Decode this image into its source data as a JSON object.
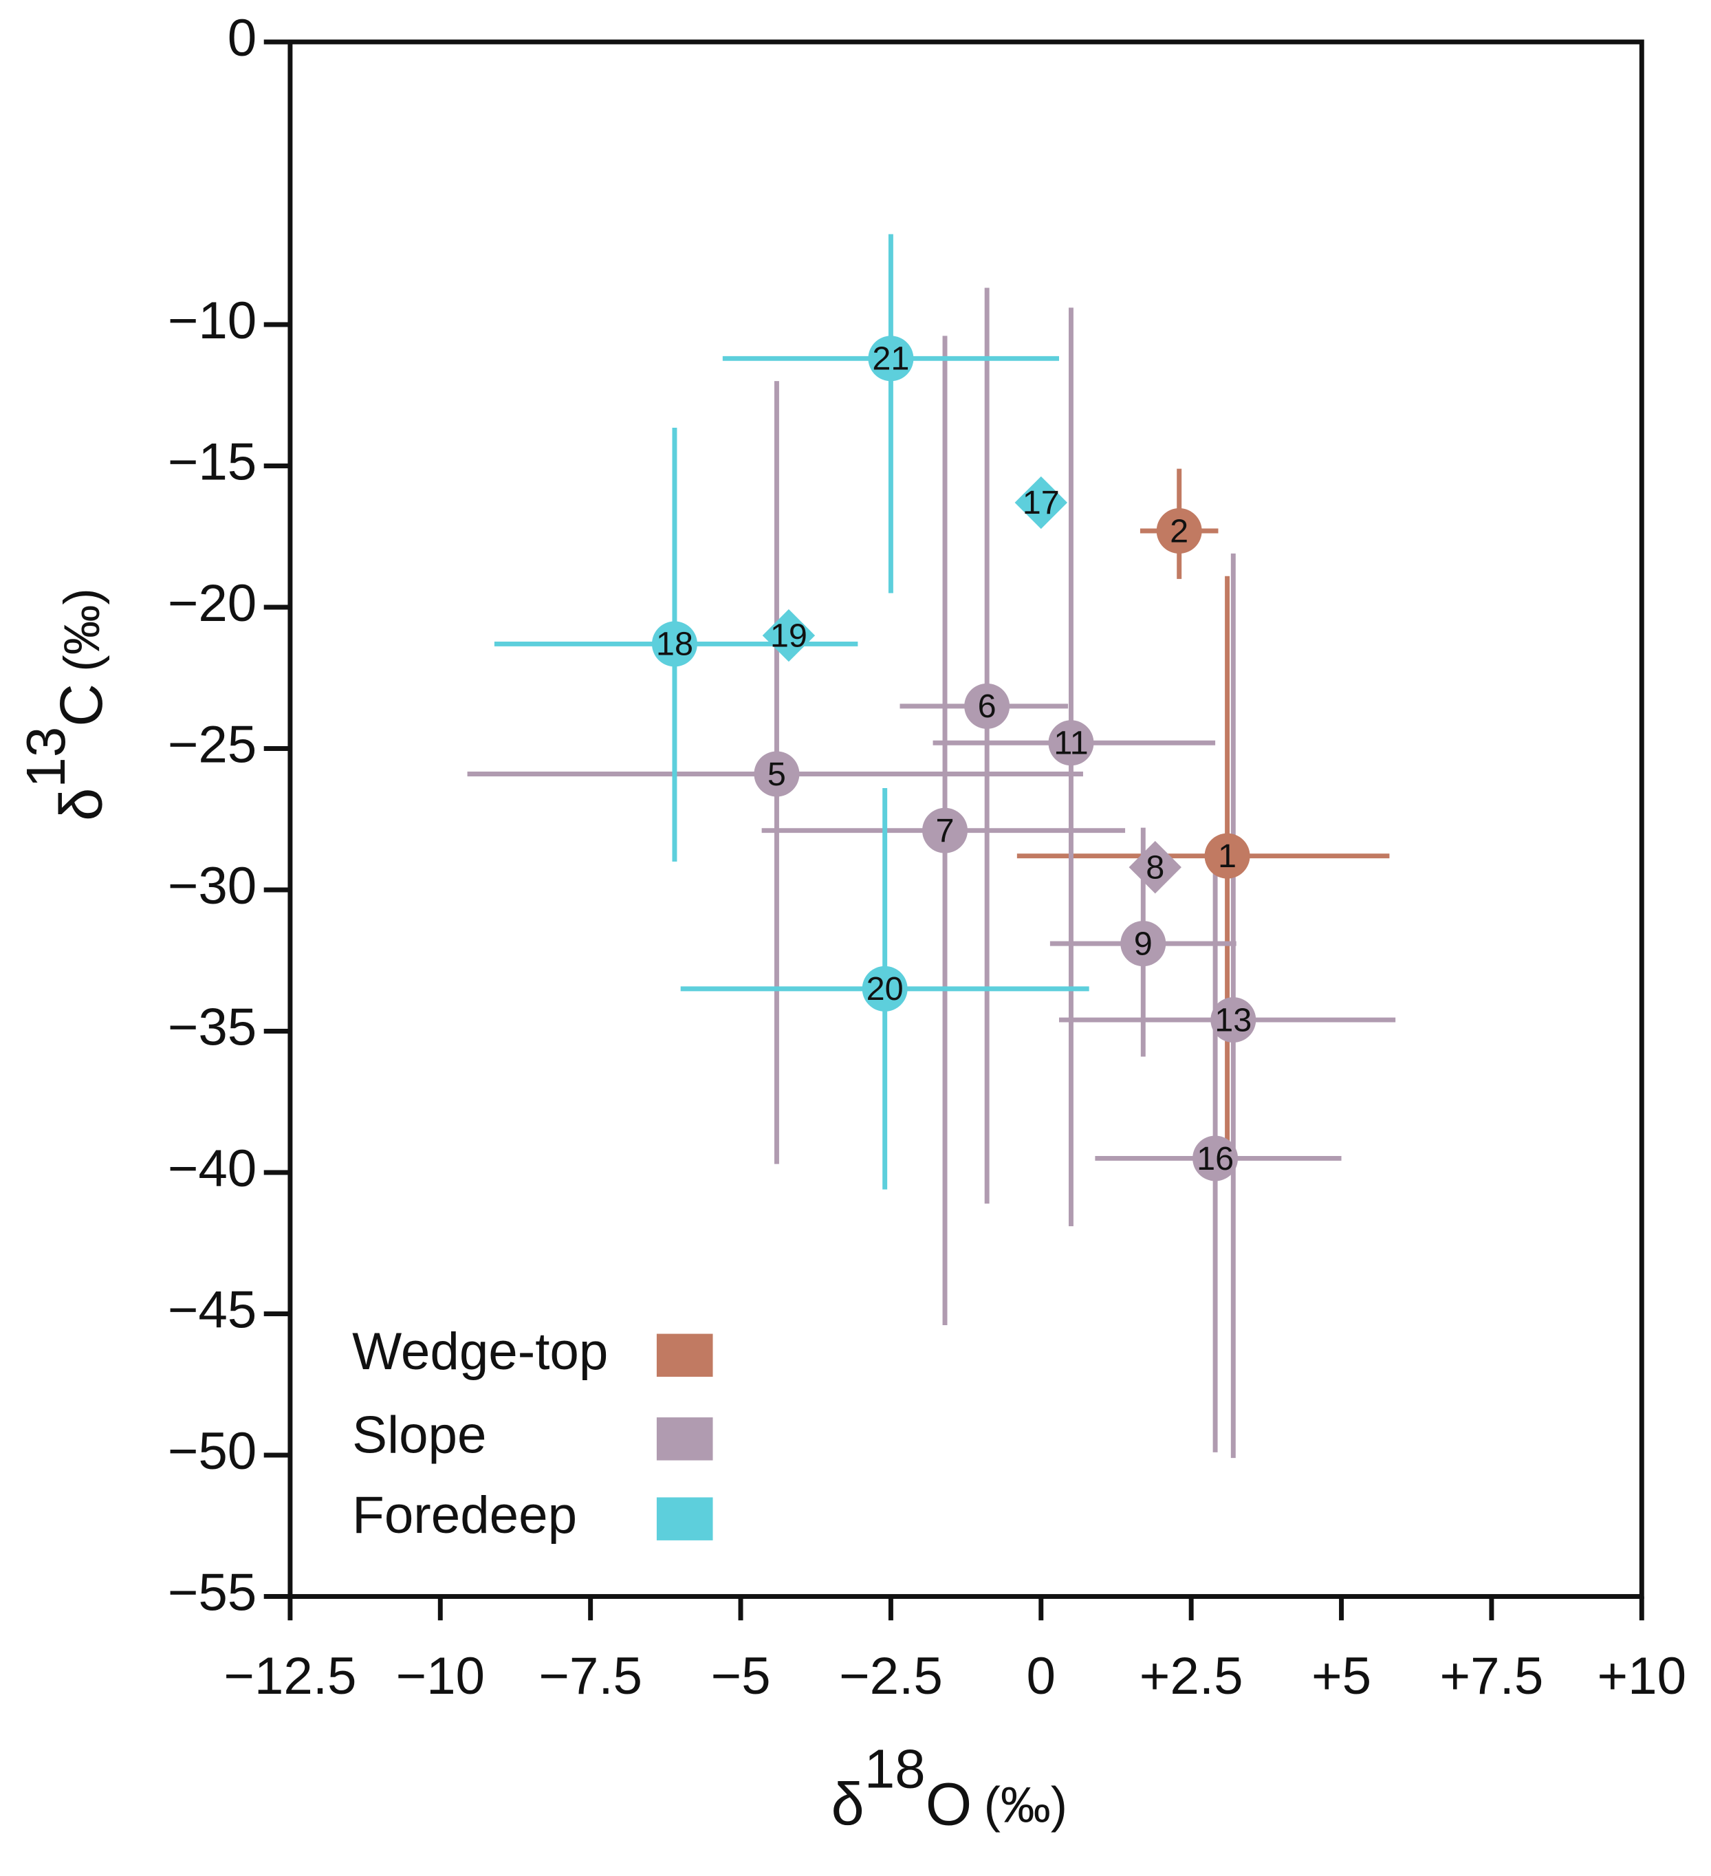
{
  "chart_data": {
    "type": "scatter",
    "x_label": {
      "symbol": "δ",
      "sup": "18",
      "element": "O",
      "unit": "(‰)"
    },
    "y_label": {
      "symbol": "δ",
      "sup": "13",
      "element": "C",
      "unit": "(‰)"
    },
    "xlim": [
      -12.5,
      10
    ],
    "ylim": [
      -55,
      0
    ],
    "xticks": [
      {
        "value": -12.5,
        "label": "−12.5"
      },
      {
        "value": -10,
        "label": "−10"
      },
      {
        "value": -7.5,
        "label": "−7.5"
      },
      {
        "value": -5,
        "label": "−5"
      },
      {
        "value": -2.5,
        "label": "−2.5"
      },
      0,
      {
        "value": 2.5,
        "label": "+2.5"
      },
      {
        "value": 5,
        "label": "+5"
      },
      {
        "value": 7.5,
        "label": "+7.5"
      },
      {
        "value": 10,
        "label": "+10"
      }
    ],
    "yticks": [
      0,
      {
        "value": -10,
        "label": "−10"
      },
      {
        "value": -15,
        "label": "−15"
      },
      {
        "value": -20,
        "label": "−20"
      },
      {
        "value": -25,
        "label": "−25"
      },
      {
        "value": -30,
        "label": "−30"
      },
      {
        "value": -35,
        "label": "−35"
      },
      {
        "value": -40,
        "label": "−40"
      },
      {
        "value": -45,
        "label": "−45"
      },
      {
        "value": -50,
        "label": "−50"
      },
      {
        "value": -55,
        "label": "−55"
      }
    ],
    "legend": "lower left",
    "series": [
      {
        "name": "Wedge-top",
        "color": "#c17a62",
        "labels": [
          "1",
          "2"
        ],
        "markers": [
          "circle",
          "circle"
        ],
        "x": [
          3.1,
          2.3
        ],
        "y": [
          -28.8,
          -17.3
        ],
        "xerr": [
          [
            3.5,
            2.7
          ],
          [
            0.65,
            0.65
          ]
        ],
        "yerr": [
          [
            10.4,
            9.9
          ],
          [
            1.7,
            2.2
          ]
        ]
      },
      {
        "name": "Slope",
        "color": "#b09bb0",
        "labels": [
          "5",
          "6",
          "11",
          "7",
          "8",
          "9",
          "13",
          "16"
        ],
        "markers": [
          "circle",
          "circle",
          "circle",
          "circle",
          "diamond",
          "circle",
          "circle",
          "circle"
        ],
        "x": [
          -4.4,
          -0.9,
          0.5,
          -1.6,
          1.9,
          1.7,
          3.2,
          2.9
        ],
        "y": [
          -25.9,
          -23.5,
          -24.8,
          -27.9,
          -29.2,
          -31.9,
          -34.6,
          -39.5
        ],
        "xerr": [
          [
            5.15,
            5.1
          ],
          [
            1.45,
            1.35
          ],
          [
            2.3,
            2.4
          ],
          [
            3.05,
            3.0
          ],
          null,
          [
            1.55,
            1.55
          ],
          [
            2.9,
            2.7
          ],
          [
            2.0,
            2.1
          ]
        ],
        "yerr": [
          [
            13.8,
            13.9
          ],
          [
            17.6,
            14.8
          ],
          [
            17.1,
            15.4
          ],
          [
            17.5,
            17.5
          ],
          null,
          [
            4.0,
            4.1
          ],
          [
            15.5,
            16.5
          ],
          [
            10.4,
            10.8
          ]
        ]
      },
      {
        "name": "Foredeep",
        "color": "#5dcfdc",
        "labels": [
          "21",
          "17",
          "18",
          "19",
          "20"
        ],
        "markers": [
          "circle",
          "diamond",
          "circle",
          "diamond",
          "circle"
        ],
        "x": [
          -2.5,
          0,
          -6.1,
          -4.2,
          -2.6
        ],
        "y": [
          -11.2,
          -16.3,
          -21.3,
          -21.0,
          -33.5
        ],
        "xerr": [
          [
            2.8,
            2.8
          ],
          null,
          [
            3.0,
            3.05
          ],
          null,
          [
            3.4,
            3.4
          ]
        ],
        "yerr": [
          [
            8.3,
            4.4
          ],
          null,
          [
            7.7,
            7.65
          ],
          null,
          [
            7.1,
            7.1
          ]
        ]
      }
    ]
  }
}
